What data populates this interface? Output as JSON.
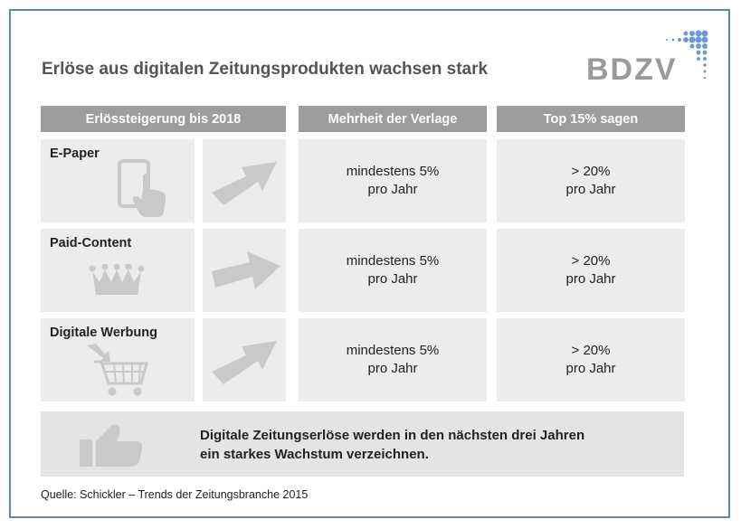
{
  "title": "Erlöse aus digitalen Zeitungsprodukten wachsen stark",
  "logo": {
    "text": "BDZV",
    "color": "#9a9a9a",
    "dot_color": "#6f9cd0"
  },
  "headers": {
    "col1": "Erlössteigerung bis 2018",
    "col2": "Mehrheit der Verlage",
    "col3": "Top 15% sagen"
  },
  "rows": [
    {
      "label": "E-Paper",
      "icon": "tablet-touch-icon",
      "majority": [
        "mindestens 5%",
        "pro Jahr"
      ],
      "top": [
        "> 20%",
        "pro Jahr"
      ]
    },
    {
      "label": "Paid-Content",
      "icon": "crown-icon",
      "majority": [
        "mindestens 5%",
        "pro Jahr"
      ],
      "top": [
        "> 20%",
        "pro Jahr"
      ]
    },
    {
      "label": "Digitale Werbung",
      "icon": "shopping-cart-icon",
      "majority": [
        "mindestens 5%",
        "pro Jahr"
      ],
      "top": [
        "> 20%",
        "pro Jahr"
      ]
    }
  ],
  "conclusion": {
    "line1": "Digitale Zeitungserlöse werden in den nächsten drei Jahren",
    "line2": "ein starkes Wachstum verzeichnen.",
    "icon": "thumbs-up-icon"
  },
  "source": "Quelle: Schickler – Trends der Zeitungsbranche 2015",
  "colors": {
    "frame": "#5d86b5",
    "header_bg": "#9d9d9d",
    "cell_bg": "#ececec",
    "icon": "#c9c9c9"
  }
}
